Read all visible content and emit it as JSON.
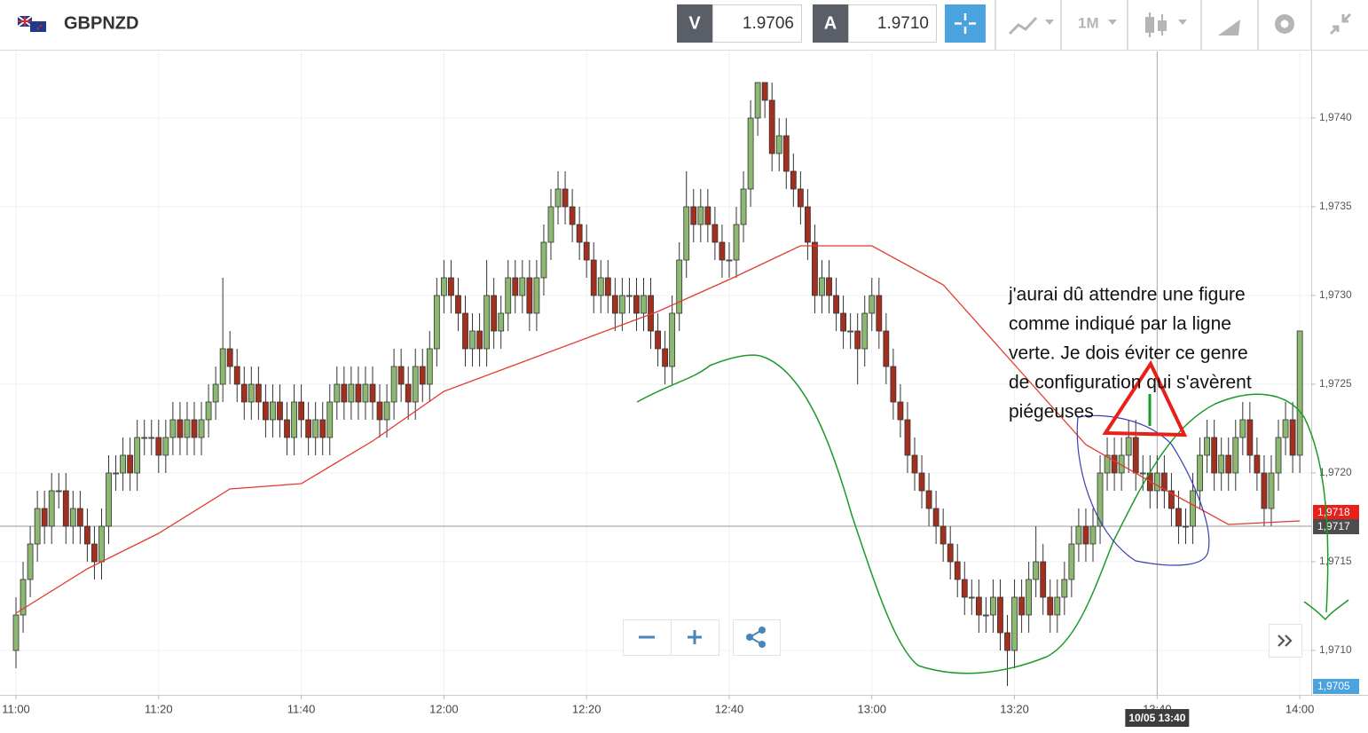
{
  "header": {
    "symbol": "GBPNZD",
    "sell_label": "V",
    "sell_price": "1.9706",
    "buy_label": "A",
    "buy_price": "1.9710",
    "timeframe": "1M"
  },
  "chart_data": {
    "type": "candlestick",
    "xlim": [
      -2.24,
      181.6
    ],
    "xticks": [
      {
        "value": 0,
        "label": "11:00"
      },
      {
        "value": 20,
        "label": "11:20"
      },
      {
        "value": 40,
        "label": "11:40"
      },
      {
        "value": 60,
        "label": "12:00"
      },
      {
        "value": 80,
        "label": "12:20"
      },
      {
        "value": 100,
        "label": "12:40"
      },
      {
        "value": 120,
        "label": "13:00"
      },
      {
        "value": 140,
        "label": "13:20"
      },
      {
        "value": 160,
        "label": "13:40"
      },
      {
        "value": 180,
        "label": "14:00"
      }
    ],
    "ylim": [
      1.97075,
      1.974375
    ],
    "yticks": [
      {
        "value": 1.971,
        "label": "1,9710"
      },
      {
        "value": 1.9715,
        "label": "1,9715"
      },
      {
        "value": 1.972,
        "label": "1,9720"
      },
      {
        "value": 1.9725,
        "label": "1,9725"
      },
      {
        "value": 1.973,
        "label": "1,9730"
      },
      {
        "value": 1.9735,
        "label": "1,9735"
      },
      {
        "value": 1.974,
        "label": "1,9740"
      }
    ],
    "grid": true,
    "up_color": "#8db872",
    "down_color": "#a3301f",
    "open": [
      1.971,
      1.9712,
      1.9714,
      1.9716,
      1.9718,
      1.9717,
      1.9719,
      1.9719,
      1.9717,
      1.9718,
      1.9717,
      1.9716,
      1.9715,
      1.9717,
      1.972,
      1.972,
      1.9721,
      1.972,
      1.9722,
      1.9722,
      1.9722,
      1.9721,
      1.9722,
      1.9723,
      1.9722,
      1.9723,
      1.9722,
      1.9723,
      1.9724,
      1.9725,
      1.9727,
      1.9726,
      1.9725,
      1.9724,
      1.9725,
      1.9724,
      1.9723,
      1.9724,
      1.9723,
      1.9722,
      1.9724,
      1.9723,
      1.9722,
      1.9723,
      1.9722,
      1.9724,
      1.9725,
      1.9724,
      1.9725,
      1.9724,
      1.9725,
      1.9724,
      1.9723,
      1.9724,
      1.9726,
      1.9725,
      1.9724,
      1.9726,
      1.9725,
      1.9727,
      1.973,
      1.9731,
      1.973,
      1.9729,
      1.9727,
      1.9728,
      1.9727,
      1.973,
      1.9728,
      1.9729,
      1.9731,
      1.973,
      1.9731,
      1.9729,
      1.9731,
      1.9733,
      1.9735,
      1.9736,
      1.9735,
      1.9734,
      1.9733,
      1.9732,
      1.973,
      1.9731,
      1.973,
      1.9729,
      1.973,
      1.973,
      1.9729,
      1.973,
      1.9728,
      1.9727,
      1.9726,
      1.9729,
      1.9732,
      1.9735,
      1.9734,
      1.9735,
      1.9734,
      1.9733,
      1.9732,
      1.9732,
      1.9734,
      1.9736,
      1.974,
      1.9742,
      1.9741,
      1.9738,
      1.9739,
      1.9737,
      1.9736,
      1.9735,
      1.9733,
      1.973,
      1.9731,
      1.973,
      1.9729,
      1.9728,
      1.9728,
      1.9727,
      1.9729,
      1.973,
      1.9728,
      1.9726,
      1.9724,
      1.9723,
      1.9721,
      1.972,
      1.9719,
      1.9718,
      1.9717,
      1.9716,
      1.9715,
      1.9714,
      1.9713,
      1.9713,
      1.9712,
      1.9712,
      1.9713,
      1.9711,
      1.971,
      1.9713,
      1.9712,
      1.9714,
      1.9715,
      1.9713,
      1.9712,
      1.9713,
      1.9714,
      1.9716,
      1.9717,
      1.9716,
      1.9717,
      1.972,
      1.9721,
      1.972,
      1.9721,
      1.9722,
      1.972,
      1.972,
      1.9719,
      1.972,
      1.9719,
      1.9718,
      1.9717,
      1.9717,
      1.9719,
      1.9721,
      1.9722,
      1.972,
      1.9721,
      1.972,
      1.9722,
      1.9723,
      1.9721,
      1.972,
      1.9718,
      1.972,
      1.9722,
      1.9723,
      1.9721
    ],
    "high": [
      1.9713,
      1.9715,
      1.9717,
      1.9719,
      1.9719,
      1.972,
      1.972,
      1.972,
      1.9719,
      1.9719,
      1.9718,
      1.9717,
      1.9718,
      1.9721,
      1.9721,
      1.9722,
      1.9722,
      1.9723,
      1.9723,
      1.9723,
      1.9723,
      1.9723,
      1.9724,
      1.9724,
      1.9724,
      1.9724,
      1.9724,
      1.9725,
      1.9726,
      1.9731,
      1.9728,
      1.9727,
      1.9726,
      1.9726,
      1.9726,
      1.9725,
      1.9725,
      1.9725,
      1.9724,
      1.9725,
      1.9725,
      1.9724,
      1.9724,
      1.9724,
      1.9725,
      1.9726,
      1.9726,
      1.9726,
      1.9726,
      1.9726,
      1.9726,
      1.9725,
      1.9725,
      1.9727,
      1.9727,
      1.9726,
      1.9727,
      1.9727,
      1.9728,
      1.9731,
      1.9732,
      1.9732,
      1.9731,
      1.973,
      1.9729,
      1.9729,
      1.9732,
      1.9731,
      1.973,
      1.9732,
      1.9732,
      1.9732,
      1.9732,
      1.9732,
      1.9734,
      1.9736,
      1.9737,
      1.9737,
      1.9736,
      1.9735,
      1.9734,
      1.9733,
      1.9732,
      1.9732,
      1.9731,
      1.9731,
      1.9731,
      1.9731,
      1.9731,
      1.9731,
      1.9729,
      1.9728,
      1.973,
      1.9733,
      1.9737,
      1.9736,
      1.9736,
      1.9736,
      1.9735,
      1.9734,
      1.9733,
      1.9735,
      1.9737,
      1.9741,
      1.9742,
      1.9742,
      1.9742,
      1.974,
      1.974,
      1.9738,
      1.9737,
      1.9736,
      1.9734,
      1.9732,
      1.9732,
      1.9731,
      1.973,
      1.9729,
      1.9729,
      1.973,
      1.9731,
      1.9731,
      1.9729,
      1.9727,
      1.9725,
      1.9724,
      1.9722,
      1.9721,
      1.972,
      1.9719,
      1.9718,
      1.9717,
      1.9716,
      1.9715,
      1.9714,
      1.9714,
      1.9713,
      1.9714,
      1.9714,
      1.9712,
      1.9714,
      1.9714,
      1.9715,
      1.9717,
      1.9716,
      1.9714,
      1.9714,
      1.9715,
      1.9717,
      1.9718,
      1.9718,
      1.9718,
      1.9721,
      1.9722,
      1.9722,
      1.9722,
      1.9723,
      1.9723,
      1.9721,
      1.9721,
      1.9721,
      1.9721,
      1.972,
      1.9719,
      1.9718,
      1.972,
      1.9722,
      1.9723,
      1.9723,
      1.9722,
      1.9722,
      1.9723,
      1.9724,
      1.9724,
      1.9722,
      1.9721,
      1.9721,
      1.9723,
      1.9724,
      1.9724,
      1.9728
    ],
    "low": [
      1.9709,
      1.9711,
      1.9713,
      1.9715,
      1.9716,
      1.9716,
      1.9718,
      1.9716,
      1.9716,
      1.9716,
      1.9715,
      1.9714,
      1.9714,
      1.9716,
      1.9719,
      1.9719,
      1.9719,
      1.9719,
      1.9721,
      1.9721,
      1.972,
      1.972,
      1.9721,
      1.9721,
      1.9721,
      1.9721,
      1.9721,
      1.9722,
      1.9723,
      1.9724,
      1.9725,
      1.9724,
      1.9723,
      1.9723,
      1.9723,
      1.9722,
      1.9722,
      1.9722,
      1.9721,
      1.9721,
      1.9722,
      1.9721,
      1.9721,
      1.9721,
      1.9721,
      1.9723,
      1.9723,
      1.9723,
      1.9723,
      1.9723,
      1.9723,
      1.9722,
      1.9722,
      1.9723,
      1.9724,
      1.9723,
      1.9723,
      1.9724,
      1.9724,
      1.9726,
      1.9729,
      1.9729,
      1.9728,
      1.9726,
      1.9726,
      1.9726,
      1.9726,
      1.9727,
      1.9727,
      1.9728,
      1.9729,
      1.9729,
      1.9728,
      1.9728,
      1.973,
      1.9732,
      1.9734,
      1.9734,
      1.9733,
      1.9732,
      1.9731,
      1.9729,
      1.9729,
      1.9729,
      1.9728,
      1.9728,
      1.9729,
      1.9728,
      1.9728,
      1.9727,
      1.9726,
      1.9725,
      1.9725,
      1.9728,
      1.9731,
      1.9733,
      1.9733,
      1.9733,
      1.9732,
      1.9731,
      1.9731,
      1.9731,
      1.9733,
      1.9735,
      1.9739,
      1.974,
      1.9737,
      1.9737,
      1.9736,
      1.9735,
      1.9734,
      1.9732,
      1.9729,
      1.9729,
      1.9729,
      1.9728,
      1.9727,
      1.9727,
      1.9725,
      1.9726,
      1.9728,
      1.9727,
      1.9725,
      1.9723,
      1.9722,
      1.972,
      1.9719,
      1.9718,
      1.9717,
      1.9716,
      1.9715,
      1.9714,
      1.9713,
      1.9712,
      1.9712,
      1.9711,
      1.9711,
      1.9711,
      1.971,
      1.9708,
      1.9709,
      1.9711,
      1.9711,
      1.9713,
      1.9712,
      1.9711,
      1.9711,
      1.9712,
      1.9713,
      1.9715,
      1.9715,
      1.9715,
      1.9716,
      1.9719,
      1.9719,
      1.9719,
      1.972,
      1.9719,
      1.9719,
      1.9718,
      1.9718,
      1.9718,
      1.9717,
      1.9716,
      1.9716,
      1.9716,
      1.9718,
      1.972,
      1.9719,
      1.9719,
      1.9719,
      1.9719,
      1.9721,
      1.972,
      1.9719,
      1.9717,
      1.9717,
      1.9719,
      1.9721,
      1.972,
      1.972
    ],
    "close": [
      1.9712,
      1.9714,
      1.9716,
      1.9718,
      1.9717,
      1.9719,
      1.9719,
      1.9717,
      1.9718,
      1.9717,
      1.9716,
      1.9715,
      1.9717,
      1.972,
      1.972,
      1.9721,
      1.972,
      1.9722,
      1.9722,
      1.9722,
      1.9721,
      1.9722,
      1.9723,
      1.9722,
      1.9723,
      1.9722,
      1.9723,
      1.9724,
      1.9725,
      1.9727,
      1.9726,
      1.9725,
      1.9724,
      1.9725,
      1.9724,
      1.9723,
      1.9724,
      1.9723,
      1.9722,
      1.9724,
      1.9723,
      1.9722,
      1.9723,
      1.9722,
      1.9724,
      1.9725,
      1.9724,
      1.9725,
      1.9724,
      1.9725,
      1.9724,
      1.9723,
      1.9724,
      1.9726,
      1.9725,
      1.9724,
      1.9726,
      1.9725,
      1.9727,
      1.973,
      1.9731,
      1.973,
      1.9729,
      1.9727,
      1.9728,
      1.9727,
      1.973,
      1.9728,
      1.9729,
      1.9731,
      1.973,
      1.9731,
      1.9729,
      1.9731,
      1.9733,
      1.9735,
      1.9736,
      1.9735,
      1.9734,
      1.9733,
      1.9732,
      1.973,
      1.9731,
      1.973,
      1.9729,
      1.973,
      1.973,
      1.9729,
      1.973,
      1.9728,
      1.9727,
      1.9726,
      1.9729,
      1.9732,
      1.9735,
      1.9734,
      1.9735,
      1.9734,
      1.9733,
      1.9732,
      1.9732,
      1.9734,
      1.9736,
      1.974,
      1.9742,
      1.9741,
      1.9738,
      1.9739,
      1.9737,
      1.9736,
      1.9735,
      1.9733,
      1.973,
      1.9731,
      1.973,
      1.9729,
      1.9728,
      1.9728,
      1.9727,
      1.9729,
      1.973,
      1.9728,
      1.9726,
      1.9724,
      1.9723,
      1.9721,
      1.972,
      1.9719,
      1.9718,
      1.9717,
      1.9716,
      1.9715,
      1.9714,
      1.9713,
      1.9713,
      1.9712,
      1.9712,
      1.9713,
      1.9711,
      1.971,
      1.9713,
      1.9712,
      1.9714,
      1.9715,
      1.9713,
      1.9712,
      1.9713,
      1.9714,
      1.9716,
      1.9717,
      1.9716,
      1.9717,
      1.972,
      1.9721,
      1.972,
      1.9721,
      1.9722,
      1.972,
      1.972,
      1.9719,
      1.972,
      1.9719,
      1.9718,
      1.9717,
      1.9717,
      1.9719,
      1.9721,
      1.9722,
      1.972,
      1.9721,
      1.972,
      1.9722,
      1.9723,
      1.9721,
      1.972,
      1.9718,
      1.972,
      1.9722,
      1.9723,
      1.9721,
      1.9728
    ],
    "moving_average": {
      "color": "#e03c31",
      "x": [
        0,
        10,
        20,
        30,
        40,
        50,
        60,
        70,
        80,
        90,
        100,
        110,
        120,
        130,
        140,
        150,
        160,
        170,
        180
      ],
      "values": [
        1.97121,
        1.97146,
        1.97166,
        1.97191,
        1.97194,
        1.97218,
        1.97246,
        1.97261,
        1.97276,
        1.97291,
        1.97309,
        1.97328,
        1.97328,
        1.97306,
        1.97261,
        1.97216,
        1.97193,
        1.97171,
        1.97173
      ]
    },
    "price_tags": [
      {
        "value": 1.97178,
        "label": "1,9718",
        "color": "#e8201a"
      },
      {
        "value": 1.9717,
        "label": "1,9717",
        "color": "#4d4d4d"
      },
      {
        "value": 1.9705,
        "label": "1,9705",
        "color": "#4aa3df"
      }
    ],
    "crosshair": {
      "value": 160,
      "label": "10/05 13:40"
    },
    "annotation": [
      "j'aurai dû attendre une figure",
      "comme indiqué par la ligne",
      "verte. Je dois éviter ce genre",
      "de configuration qui s'avèrent",
      "piégeuses"
    ]
  }
}
